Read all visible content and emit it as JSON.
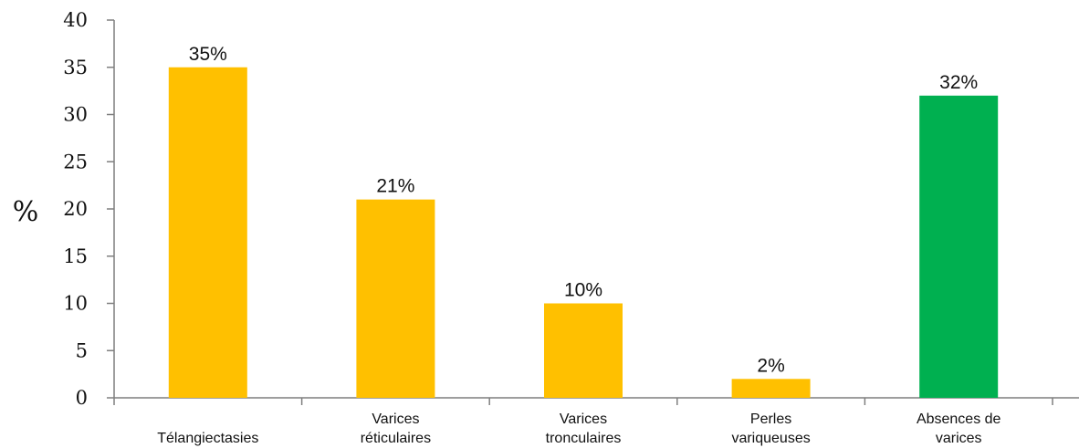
{
  "chart_data": {
    "type": "bar",
    "categories": [
      [
        "Télangiectasies"
      ],
      [
        "Varices",
        "réticulaires"
      ],
      [
        "Varices",
        "tronculaires"
      ],
      [
        "Perles",
        "variqueuses"
      ],
      [
        "Absences de",
        "varices"
      ]
    ],
    "values": [
      35,
      21,
      10,
      2,
      32
    ],
    "data_labels": [
      "35%",
      "21%",
      "10%",
      "2%",
      "32%"
    ],
    "colors": [
      "#FFC000",
      "#FFC000",
      "#FFC000",
      "#FFC000",
      "#00B050"
    ],
    "ylabel": "%",
    "ylim": [
      0,
      40
    ],
    "yticks": [
      0,
      5,
      10,
      15,
      20,
      25,
      30,
      35,
      40
    ],
    "grid": false
  }
}
